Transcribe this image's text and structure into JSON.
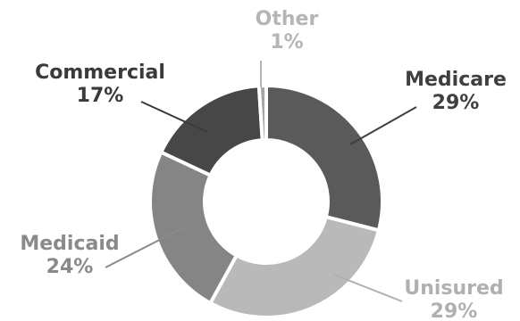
{
  "chart_data": {
    "type": "pie",
    "donut": true,
    "title": "",
    "slices": [
      {
        "name": "Medicare",
        "label": "Medicare",
        "pct_label": "29%",
        "value": 29,
        "color": "#5a5a5a",
        "label_color": "#3f3f3f"
      },
      {
        "name": "Unisured",
        "label": "Unisured",
        "pct_label": "29%",
        "value": 29,
        "color": "#b9b9b9",
        "label_color": "#b0b0b0"
      },
      {
        "name": "Medicaid",
        "label": "Medicaid",
        "pct_label": "24%",
        "value": 24,
        "color": "#858585",
        "label_color": "#8a8a8a"
      },
      {
        "name": "Commercial",
        "label": "Commercial",
        "pct_label": "17%",
        "value": 17,
        "color": "#474747",
        "label_color": "#3a3a3a"
      },
      {
        "name": "Other",
        "label": "Other",
        "pct_label": "1%",
        "value": 1,
        "color": "#a5a5a5",
        "label_color": "#b5b5b5"
      }
    ],
    "legend": "none"
  }
}
